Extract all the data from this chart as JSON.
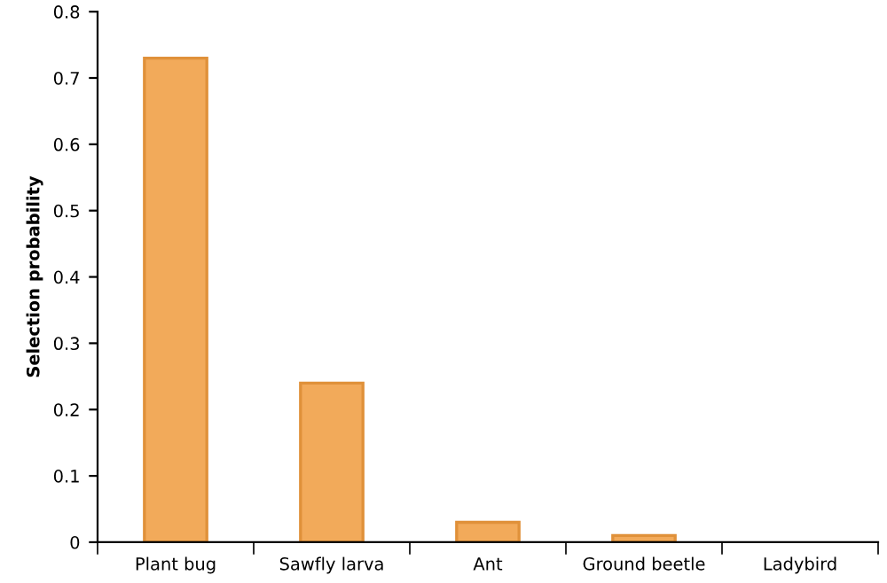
{
  "chart_data": {
    "type": "bar",
    "ylabel": "Selection probability",
    "categories": [
      "Plant bug",
      "Sawfly larva",
      "Ant",
      "Ground beetle",
      "Ladybird"
    ],
    "values": [
      0.73,
      0.24,
      0.03,
      0.01,
      0
    ],
    "color": "#f2aa5a",
    "ylim": [
      0,
      0.8
    ],
    "yticks": [
      0,
      0.1,
      0.2,
      0.3,
      0.4,
      0.5,
      0.6,
      0.7,
      0.8
    ],
    "grid": false,
    "legend": false
  }
}
